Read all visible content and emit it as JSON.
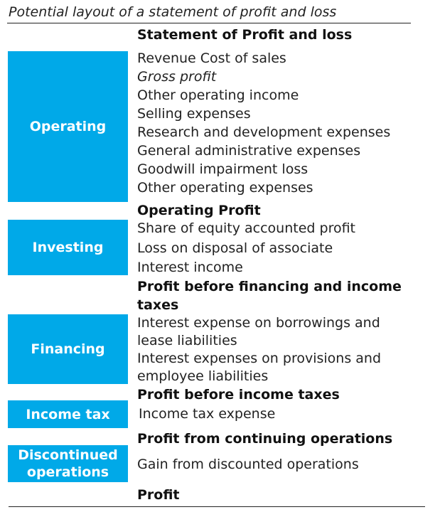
{
  "caption": "Potential layout of a statement of profit and loss",
  "statement_title": "Statement of Profit and loss",
  "sections": {
    "operating": {
      "label": "Operating",
      "items": [
        "Revenue Cost of sales",
        "Gross profit",
        "Other operating income",
        "Selling expenses",
        "Research and development expenses",
        "General administrative expenses",
        "Goodwill impairment loss",
        "Other operating expenses"
      ],
      "subtotal": "Operating Profit"
    },
    "investing": {
      "label": "Investing",
      "items": [
        "Share of equity accounted profit",
        "Loss on disposal of associate",
        "Interest income"
      ],
      "subtotal_line1": "Profit before financing and income",
      "subtotal_line2": "taxes"
    },
    "financing": {
      "label": "Financing",
      "items": [
        "Interest expense on borrowings and",
        "lease liabilities",
        "Interest expenses on provisions and",
        "employee liabilities"
      ],
      "subtotal": "Profit before income taxes"
    },
    "income_tax": {
      "label": "Income tax",
      "items": [
        "Income tax expense"
      ],
      "subtotal": "Profit from continuing operations"
    },
    "discontinued": {
      "label_line1": "Discontinued",
      "label_line2": "operations",
      "items": [
        "Gain from discounted operations"
      ]
    }
  },
  "final_total": "Profit",
  "colors": {
    "section_box": "#00a9e8",
    "section_text": "#ffffff"
  }
}
